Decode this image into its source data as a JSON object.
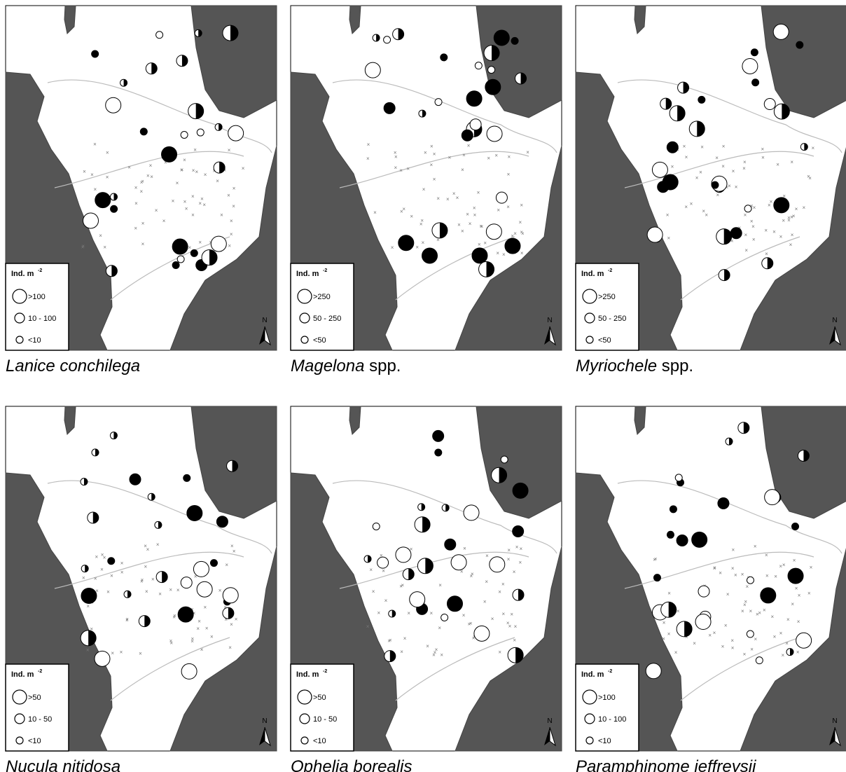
{
  "panels": [
    {
      "species": "Lanice conchilega",
      "legend": {
        "title": "Ind. m",
        "exponent": "-2",
        "classes": [
          ">100",
          "10 - 100",
          "<10"
        ]
      },
      "north": "N"
    },
    {
      "species": "Magelona",
      "suffix": "spp.",
      "legend": {
        "title": "Ind. m",
        "exponent": "-2",
        "classes": [
          ">250",
          "50 - 250",
          "<50"
        ]
      },
      "north": "N"
    },
    {
      "species": "Myriochele",
      "suffix": "spp.",
      "legend": {
        "title": "Ind. m",
        "exponent": "-2",
        "classes": [
          ">250",
          "50 - 250",
          "<50"
        ]
      },
      "north": "N"
    },
    {
      "species": "Nucula nitidosa",
      "legend": {
        "title": "Ind. m",
        "exponent": "-2",
        "classes": [
          ">50",
          "10 - 50",
          "<10"
        ]
      },
      "north": "N"
    },
    {
      "species": "Ophelia borealis",
      "legend": {
        "title": "Ind. m",
        "exponent": "-2",
        "classes": [
          ">50",
          "10 - 50",
          "<10"
        ]
      },
      "north": "N"
    },
    {
      "species": "Paramphinome jeffreysii",
      "legend": {
        "title": "Ind. m",
        "exponent": "-2",
        "classes": [
          ">100",
          "10 - 100",
          "<10"
        ]
      },
      "north": "N"
    }
  ]
}
